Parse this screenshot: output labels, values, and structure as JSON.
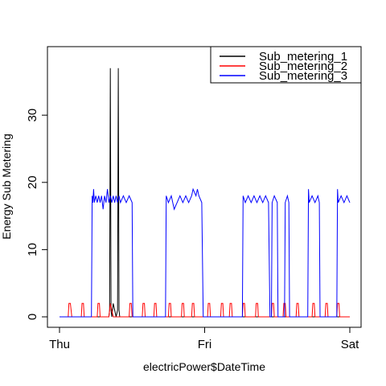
{
  "chart_data": {
    "type": "line",
    "xlabel": "electricPower$DateTime",
    "ylabel": "Energy Sub Metering",
    "x_tick_labels": [
      "Thu",
      "Fri",
      "Sat"
    ],
    "x_range_days": [
      0,
      2
    ],
    "y_ticks": [
      0,
      10,
      20,
      30
    ],
    "ylim": [
      0,
      38
    ],
    "grid": false,
    "legend_position": "top-right",
    "series": [
      {
        "name": "Sub_metering_1",
        "color": "#000000",
        "points": [
          [
            0,
            0
          ],
          [
            0.34,
            0
          ],
          [
            0.345,
            1
          ],
          [
            0.35,
            37
          ],
          [
            0.355,
            1
          ],
          [
            0.36,
            0
          ],
          [
            0.37,
            2
          ],
          [
            0.38,
            1
          ],
          [
            0.39,
            0
          ],
          [
            0.4,
            1
          ],
          [
            0.405,
            37
          ],
          [
            0.41,
            1
          ],
          [
            0.415,
            0
          ],
          [
            0.43,
            0
          ],
          [
            2,
            0
          ]
        ]
      },
      {
        "name": "Sub_metering_2",
        "color": "#ff0000",
        "points": [
          [
            0,
            0
          ],
          [
            0.06,
            0
          ],
          [
            0.065,
            2
          ],
          [
            0.075,
            2
          ],
          [
            0.08,
            1
          ],
          [
            0.085,
            0
          ],
          [
            0.15,
            0
          ],
          [
            0.155,
            2
          ],
          [
            0.165,
            2
          ],
          [
            0.17,
            0
          ],
          [
            0.26,
            0
          ],
          [
            0.265,
            2
          ],
          [
            0.275,
            2
          ],
          [
            0.28,
            0
          ],
          [
            0.34,
            0
          ],
          [
            0.345,
            1
          ],
          [
            0.35,
            2
          ],
          [
            0.36,
            1
          ],
          [
            0.37,
            0
          ],
          [
            0.48,
            0
          ],
          [
            0.485,
            2
          ],
          [
            0.495,
            2
          ],
          [
            0.5,
            0
          ],
          [
            0.57,
            0
          ],
          [
            0.575,
            2
          ],
          [
            0.585,
            2
          ],
          [
            0.59,
            0
          ],
          [
            0.65,
            0
          ],
          [
            0.655,
            2
          ],
          [
            0.665,
            2
          ],
          [
            0.67,
            0
          ],
          [
            0.75,
            0
          ],
          [
            0.755,
            2
          ],
          [
            0.765,
            2
          ],
          [
            0.77,
            0
          ],
          [
            0.84,
            0
          ],
          [
            0.845,
            2
          ],
          [
            0.855,
            2
          ],
          [
            0.86,
            0
          ],
          [
            0.91,
            0
          ],
          [
            0.915,
            2
          ],
          [
            0.925,
            2
          ],
          [
            0.93,
            0
          ],
          [
            1.02,
            0
          ],
          [
            1.025,
            2
          ],
          [
            1.035,
            2
          ],
          [
            1.04,
            0
          ],
          [
            1.11,
            0
          ],
          [
            1.115,
            2
          ],
          [
            1.125,
            2
          ],
          [
            1.13,
            0
          ],
          [
            1.17,
            0
          ],
          [
            1.175,
            2
          ],
          [
            1.185,
            2
          ],
          [
            1.19,
            0
          ],
          [
            1.26,
            0
          ],
          [
            1.265,
            2
          ],
          [
            1.275,
            2
          ],
          [
            1.28,
            0
          ],
          [
            1.35,
            0
          ],
          [
            1.355,
            2
          ],
          [
            1.365,
            2
          ],
          [
            1.37,
            0
          ],
          [
            1.46,
            0
          ],
          [
            1.465,
            2
          ],
          [
            1.475,
            2
          ],
          [
            1.48,
            0
          ],
          [
            1.54,
            0
          ],
          [
            1.545,
            2
          ],
          [
            1.555,
            2
          ],
          [
            1.56,
            0
          ],
          [
            1.63,
            0
          ],
          [
            1.635,
            2
          ],
          [
            1.645,
            2
          ],
          [
            1.65,
            0
          ],
          [
            1.74,
            0
          ],
          [
            1.745,
            2
          ],
          [
            1.755,
            2
          ],
          [
            1.76,
            0
          ],
          [
            1.83,
            0
          ],
          [
            1.835,
            2
          ],
          [
            1.845,
            2
          ],
          [
            1.85,
            0
          ],
          [
            1.91,
            0
          ],
          [
            1.915,
            2
          ],
          [
            1.925,
            2
          ],
          [
            1.93,
            0
          ],
          [
            2,
            0
          ]
        ]
      },
      {
        "name": "Sub_metering_3",
        "color": "#0000ff",
        "points": [
          [
            0,
            0
          ],
          [
            0.22,
            0
          ],
          [
            0.225,
            18
          ],
          [
            0.23,
            17
          ],
          [
            0.235,
            19
          ],
          [
            0.24,
            17
          ],
          [
            0.25,
            18
          ],
          [
            0.26,
            17
          ],
          [
            0.27,
            18
          ],
          [
            0.28,
            17
          ],
          [
            0.29,
            18
          ],
          [
            0.3,
            16
          ],
          [
            0.31,
            18
          ],
          [
            0.32,
            17
          ],
          [
            0.33,
            19
          ],
          [
            0.34,
            17
          ],
          [
            0.35,
            18
          ],
          [
            0.36,
            17
          ],
          [
            0.37,
            18
          ],
          [
            0.38,
            17
          ],
          [
            0.39,
            18
          ],
          [
            0.4,
            17
          ],
          [
            0.41,
            18
          ],
          [
            0.42,
            17
          ],
          [
            0.44,
            18
          ],
          [
            0.46,
            17
          ],
          [
            0.48,
            18
          ],
          [
            0.5,
            17
          ],
          [
            0.505,
            0
          ],
          [
            0.73,
            0
          ],
          [
            0.735,
            18
          ],
          [
            0.75,
            17
          ],
          [
            0.77,
            18
          ],
          [
            0.79,
            16
          ],
          [
            0.81,
            17
          ],
          [
            0.83,
            18
          ],
          [
            0.85,
            17
          ],
          [
            0.87,
            18
          ],
          [
            0.89,
            17
          ],
          [
            0.91,
            18
          ],
          [
            0.92,
            19
          ],
          [
            0.94,
            18
          ],
          [
            0.95,
            19
          ],
          [
            0.96,
            18
          ],
          [
            0.98,
            17
          ],
          [
            0.99,
            0
          ],
          [
            1.26,
            0
          ],
          [
            1.265,
            18
          ],
          [
            1.28,
            17
          ],
          [
            1.3,
            18
          ],
          [
            1.32,
            17
          ],
          [
            1.34,
            18
          ],
          [
            1.36,
            17
          ],
          [
            1.38,
            18
          ],
          [
            1.4,
            17
          ],
          [
            1.42,
            18
          ],
          [
            1.44,
            17
          ],
          [
            1.45,
            0
          ],
          [
            1.46,
            0
          ],
          [
            1.465,
            17
          ],
          [
            1.48,
            18
          ],
          [
            1.5,
            17
          ],
          [
            1.505,
            0
          ],
          [
            1.55,
            0
          ],
          [
            1.555,
            17
          ],
          [
            1.57,
            18
          ],
          [
            1.58,
            17
          ],
          [
            1.585,
            0
          ],
          [
            1.71,
            0
          ],
          [
            1.715,
            19
          ],
          [
            1.72,
            17
          ],
          [
            1.74,
            18
          ],
          [
            1.76,
            17
          ],
          [
            1.78,
            18
          ],
          [
            1.79,
            17
          ],
          [
            1.795,
            0
          ],
          [
            1.91,
            0
          ],
          [
            1.915,
            19
          ],
          [
            1.92,
            17
          ],
          [
            1.94,
            18
          ],
          [
            1.96,
            17
          ],
          [
            1.98,
            18
          ],
          [
            2,
            17
          ]
        ]
      }
    ]
  }
}
